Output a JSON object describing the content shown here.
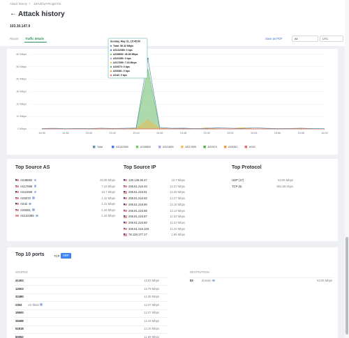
{
  "breadcrumb": [
    "Attack history",
    "JJHVbhwYPrvgD7hS"
  ],
  "header": {
    "title": "Attack history",
    "ip": "103.30.147.9"
  },
  "tabs": [
    "Report",
    "Traffic details"
  ],
  "toolbar": {
    "export": "Save as PDF",
    "filter": "All",
    "timezone": "UTC"
  },
  "chart_data": {
    "type": "line",
    "categories": [
      "15:36",
      null,
      "15:38",
      null,
      "15:40",
      null,
      "15:42",
      null,
      "15:44",
      null,
      "15:46",
      null,
      "15:48",
      null,
      "15:50",
      null,
      "15:52",
      null,
      "15:54",
      null,
      "15:56",
      null,
      "15:58",
      null,
      "16:00"
    ],
    "series": [
      {
        "name": "Total",
        "color": "#5f93b0",
        "values": [
          0.3,
          0.5,
          0.2,
          0.4,
          0.3,
          0.6,
          0.4,
          0.5,
          0.8,
          56.42,
          1.2,
          0.5,
          0.6,
          0.3,
          0.5,
          0.9,
          0.6,
          0.4,
          1.1,
          0.5,
          0.3,
          0.4,
          0.6,
          0.3,
          0.2
        ]
      },
      {
        "name": "AS132389",
        "color": "#4f7be0",
        "values": [
          0,
          0,
          0,
          0,
          0,
          0,
          0,
          0,
          0,
          0,
          0,
          0,
          0.6,
          0,
          0,
          0,
          0,
          0,
          0,
          0,
          0,
          0,
          0,
          0,
          0
        ]
      },
      {
        "name": "AS38892",
        "color": "#79c76a",
        "values": [
          0,
          0,
          0,
          0,
          0,
          0,
          0,
          0,
          0.5,
          48.38,
          0.4,
          0,
          0,
          0,
          0,
          0,
          0,
          0,
          0,
          0,
          0,
          0,
          0,
          0,
          0
        ]
      },
      {
        "name": "AS21859",
        "color": "#b59be0",
        "values": [
          0,
          0,
          0,
          0,
          0,
          0,
          0,
          0,
          0,
          0,
          0,
          0,
          0,
          0,
          0,
          0,
          0,
          0,
          0,
          0,
          0,
          0,
          0,
          0,
          0
        ]
      },
      {
        "name": "AS17899",
        "color": "#f0c04c",
        "values": [
          0,
          0.4,
          0,
          0,
          0,
          0,
          0,
          0,
          0.2,
          7.43,
          0.5,
          0,
          0,
          0,
          0.8,
          0,
          0,
          1.1,
          0,
          0,
          0,
          0,
          0.5,
          0,
          0
        ]
      },
      {
        "name": "AS9370",
        "color": "#4caf50",
        "values": [
          0,
          0,
          0,
          0,
          0,
          0,
          0,
          0,
          0,
          0,
          0,
          0,
          0,
          0,
          0,
          0,
          0,
          0,
          0,
          0,
          0,
          0,
          0,
          0,
          0
        ]
      },
      {
        "name": "AS9381",
        "color": "#f09a3e",
        "values": [
          0,
          0,
          0,
          0,
          0,
          0,
          0,
          0,
          0,
          0,
          0,
          0,
          0,
          0,
          0,
          0,
          0,
          0,
          0,
          0,
          0,
          0,
          0,
          0,
          0
        ]
      },
      {
        "name": "AS42",
        "color": "#e36a6a",
        "values": [
          0,
          0,
          0,
          0,
          0,
          0,
          0,
          0,
          0,
          0,
          0,
          0,
          0,
          0,
          0,
          0,
          0,
          0,
          0,
          0,
          0,
          0,
          0,
          0,
          0
        ]
      }
    ],
    "ylim": [
      0,
      60
    ],
    "yticks": [
      {
        "value": 0,
        "label": "0 Mbps"
      },
      {
        "value": 10,
        "label": "10 Mbps"
      },
      {
        "value": 20,
        "label": "20 Mbps"
      },
      {
        "value": 30,
        "label": "30 Mbps"
      },
      {
        "value": 40,
        "label": "40 Mbps"
      },
      {
        "value": 50,
        "label": "50 Mbps"
      },
      {
        "value": 60,
        "label": "60 Mbps"
      }
    ],
    "grid": true,
    "legend": "bottom",
    "tooltip": {
      "title": "Sunday, May 31, 15:45:00",
      "rows": [
        "Total: 56.42 Mbps",
        "AS132389: 0 bps",
        "AS38892: 48.38 Mbps",
        "AS21859: 0 bps",
        "AS17899: 7.43 Mbps",
        "AS9370: 0 bps",
        "AS9381: 0 bps",
        "AS42: 0 bps"
      ]
    }
  },
  "top_source_as": {
    "title": "Top Source AS",
    "rows": [
      [
        "AS38892",
        "48.38 Mbps"
      ],
      [
        "AS17899",
        "7.43 Mbps"
      ],
      [
        "AS21859",
        "23.7 Mbps"
      ],
      [
        "AS9370",
        "1.32 Mbps"
      ],
      [
        "AS42",
        "1.31 Mbps"
      ],
      [
        "AS9381",
        "1.26 Mbps"
      ],
      [
        "AS132389",
        "1.26 Mbps"
      ]
    ]
  },
  "top_source_ip": {
    "title": "Top Source IP",
    "rows": [
      [
        "120.149.36.47",
        "23.7 Mbps"
      ],
      [
        "206.61.216.40",
        "12.37 Mbps"
      ],
      [
        "206.61.216.91",
        "12.36 Mbps"
      ],
      [
        "206.61.216.92",
        "12.27 Mbps"
      ],
      [
        "206.61.216.90",
        "12.18 Mbps"
      ],
      [
        "206.61.216.86",
        "12.13 Mbps"
      ],
      [
        "206.61.216.87",
        "11.53 Mbps"
      ],
      [
        "206.61.216.80",
        "11.23 Mbps"
      ],
      [
        "206.61.216.103",
        "11.22 Mbps"
      ],
      [
        "78.128.177.17",
        "1.85 Mbps"
      ]
    ]
  },
  "top_protocol": {
    "title": "Top Protocol",
    "rows": [
      [
        "UDP (17)",
        "54.05 Mbps"
      ],
      [
        "TCP (6)",
        "653.69 Kbps"
      ]
    ]
  },
  "top_ports": {
    "title": "Top 10 ports",
    "toggles": [
      "TCP",
      "UDP"
    ],
    "source_header": "SOURCE",
    "destination_header": "DESTINATION",
    "source": [
      [
        "41404",
        "13.83 Mbps"
      ],
      [
        "12003",
        "12.79 Mbps"
      ],
      [
        "32480",
        "12.38 Mbps"
      ],
      [
        "2302",
        "csr-lblah",
        "12.37 Mbps"
      ],
      [
        "16500",
        "12.37 Mbps"
      ],
      [
        "29498",
        "12.16 Mbps"
      ],
      [
        "51818",
        "12.15 Mbps"
      ],
      [
        "60062",
        "11.68 Mbps"
      ]
    ],
    "destination": [
      [
        "53",
        "domain",
        "54.05 Mbps"
      ]
    ]
  }
}
